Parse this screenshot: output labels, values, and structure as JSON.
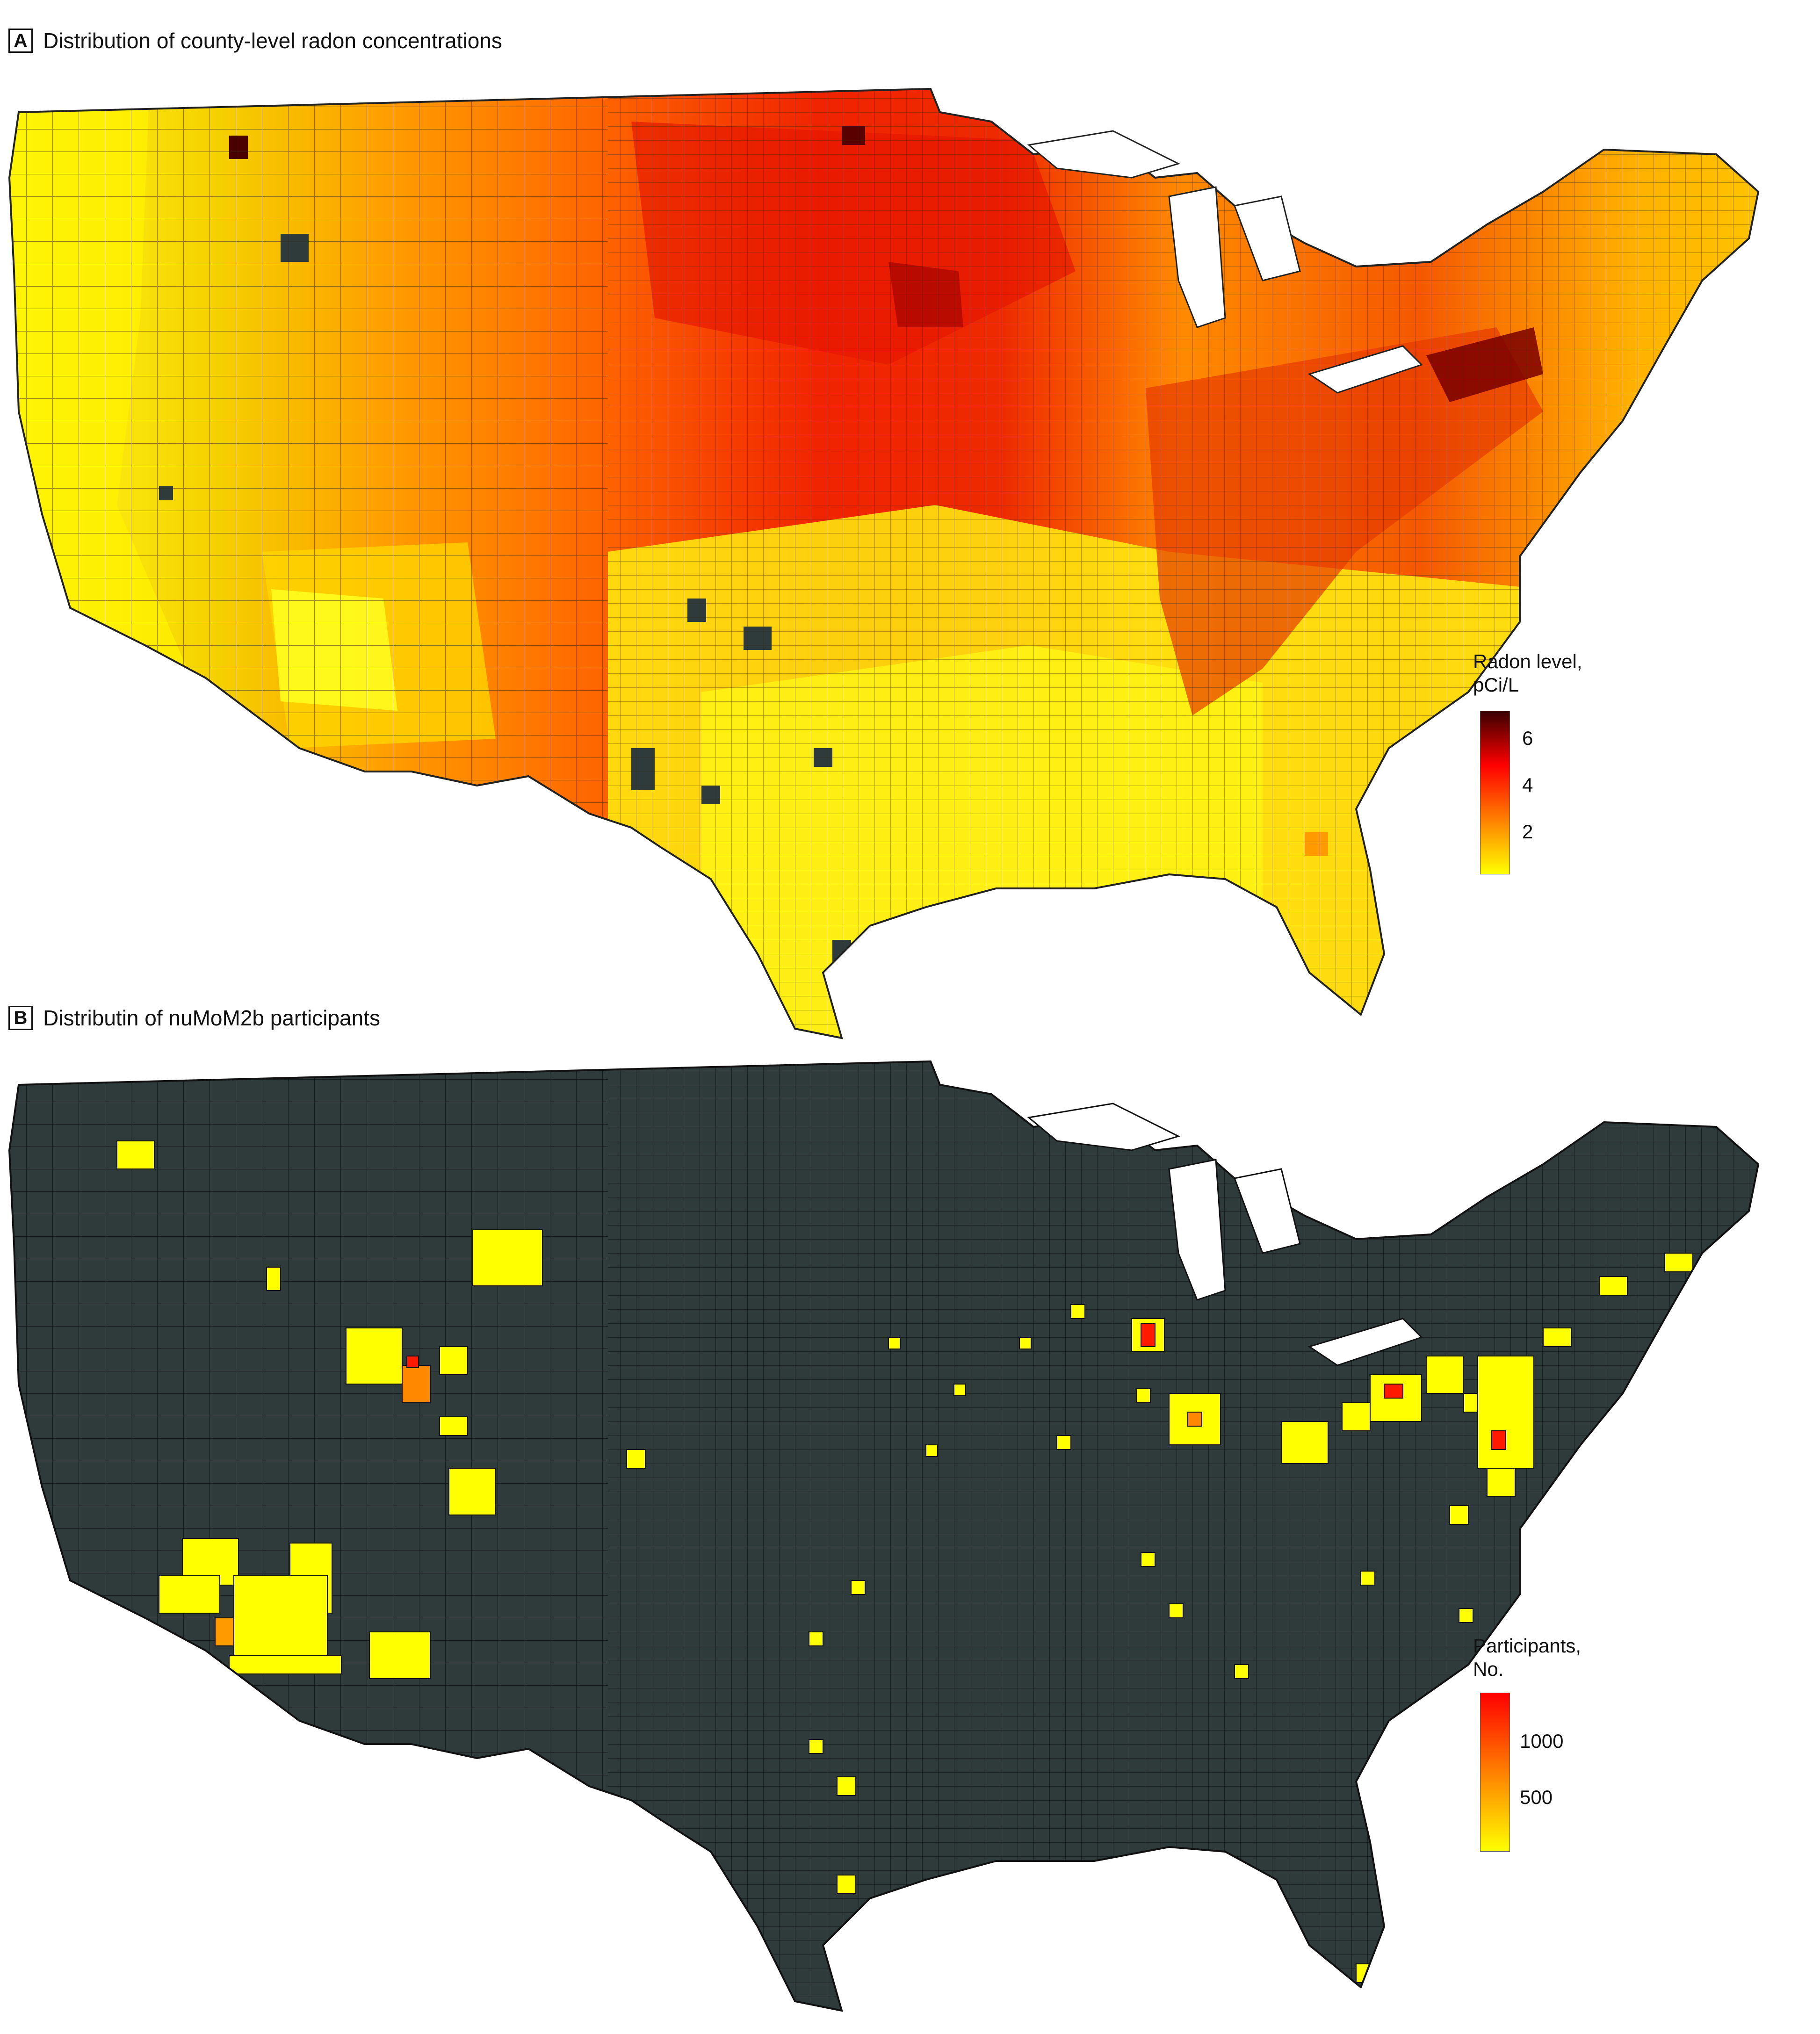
{
  "panel_a": {
    "letter": "A",
    "title": "Distribution of county-level radon concentrations",
    "legend": {
      "title_line1": "Radon level,",
      "title_line2": "pCi/L",
      "ticks": [
        "6",
        "4",
        "2"
      ],
      "colors": [
        "#3a0000",
        "#ff0000",
        "#ff8000",
        "#ffff00"
      ]
    }
  },
  "panel_b": {
    "letter": "B",
    "title": "Distributin of nuMoM2b participants",
    "legend": {
      "title_line1": "Participants,",
      "title_line2": "No.",
      "ticks": [
        "1000",
        "500"
      ],
      "colors": [
        "#ff0000",
        "#ff8000",
        "#ffff00"
      ]
    }
  },
  "colors": {
    "no_data": "#2f3b3b",
    "low": "#ffff00",
    "mid": "#ff9a00",
    "high": "#e60000",
    "very_high": "#5a0000",
    "border": "#222222"
  }
}
